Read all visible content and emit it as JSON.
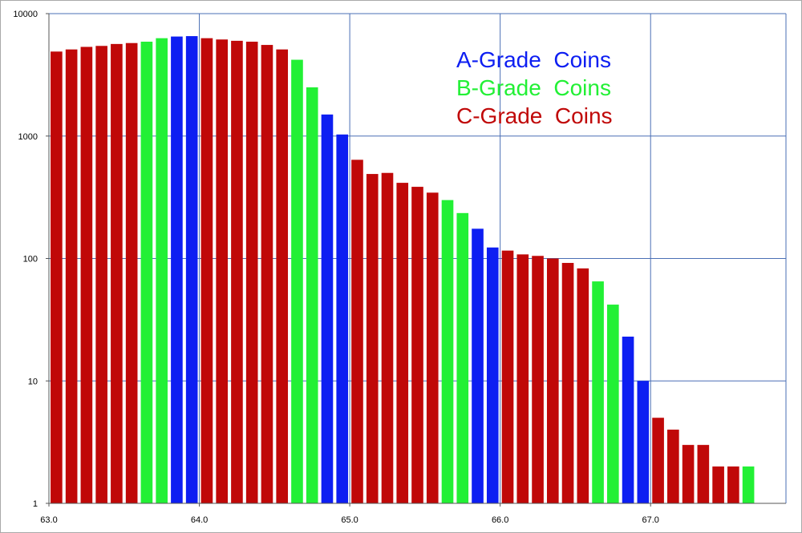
{
  "chart_data": {
    "type": "bar",
    "title": "",
    "xlabel": "",
    "ylabel": "",
    "y_scale": "log",
    "ylim": [
      1,
      10000
    ],
    "xlim": [
      63.0,
      67.9
    ],
    "grid": true,
    "legend_placement": "top-right",
    "y_ticks": [
      {
        "value": 1,
        "label": "1"
      },
      {
        "value": 10,
        "label": "10"
      },
      {
        "value": 100,
        "label": "100"
      },
      {
        "value": 1000,
        "label": "1000"
      },
      {
        "value": 10000,
        "label": "10000"
      }
    ],
    "x_ticks": [
      {
        "value": 63.0,
        "label": "63.0"
      },
      {
        "value": 64.0,
        "label": "64.0"
      },
      {
        "value": 65.0,
        "label": "65.0"
      },
      {
        "value": 66.0,
        "label": "66.0"
      },
      {
        "value": 67.0,
        "label": "67.0"
      }
    ],
    "x": [
      63.05,
      63.15,
      63.25,
      63.35,
      63.45,
      63.55,
      63.65,
      63.75,
      63.85,
      63.95,
      64.05,
      64.15,
      64.25,
      64.35,
      64.45,
      64.55,
      64.65,
      64.75,
      64.85,
      64.95,
      65.05,
      65.15,
      65.25,
      65.35,
      65.45,
      65.55,
      65.65,
      65.75,
      65.85,
      65.95,
      66.05,
      66.15,
      66.25,
      66.35,
      66.45,
      66.55,
      66.65,
      66.75,
      66.85,
      66.95,
      67.05,
      67.15,
      67.25,
      67.35,
      67.45,
      67.55,
      67.65
    ],
    "values": [
      4900,
      5100,
      5350,
      5450,
      5650,
      5750,
      5900,
      6300,
      6500,
      6550,
      6300,
      6150,
      6000,
      5900,
      5550,
      5100,
      4200,
      2500,
      1500,
      1030,
      640,
      490,
      500,
      415,
      385,
      345,
      300,
      235,
      175,
      123,
      116,
      108,
      105,
      100,
      92,
      83,
      65,
      42,
      23,
      10,
      5,
      4,
      3,
      3,
      2,
      2,
      2
    ],
    "grades": [
      "C",
      "C",
      "C",
      "C",
      "C",
      "C",
      "B",
      "B",
      "A",
      "A",
      "C",
      "C",
      "C",
      "C",
      "C",
      "C",
      "B",
      "B",
      "A",
      "A",
      "C",
      "C",
      "C",
      "C",
      "C",
      "C",
      "B",
      "B",
      "A",
      "A",
      "C",
      "C",
      "C",
      "C",
      "C",
      "C",
      "B",
      "B",
      "A",
      "A",
      "C",
      "C",
      "C",
      "C",
      "C",
      "C",
      "B"
    ],
    "series": [
      {
        "name": "A-Grade  Coins",
        "key": "A",
        "color": "#0d1ef2"
      },
      {
        "name": "B-Grade  Coins",
        "key": "B",
        "color": "#22f035"
      },
      {
        "name": "C-Grade  Coins",
        "key": "C",
        "color": "#c00808"
      }
    ]
  }
}
